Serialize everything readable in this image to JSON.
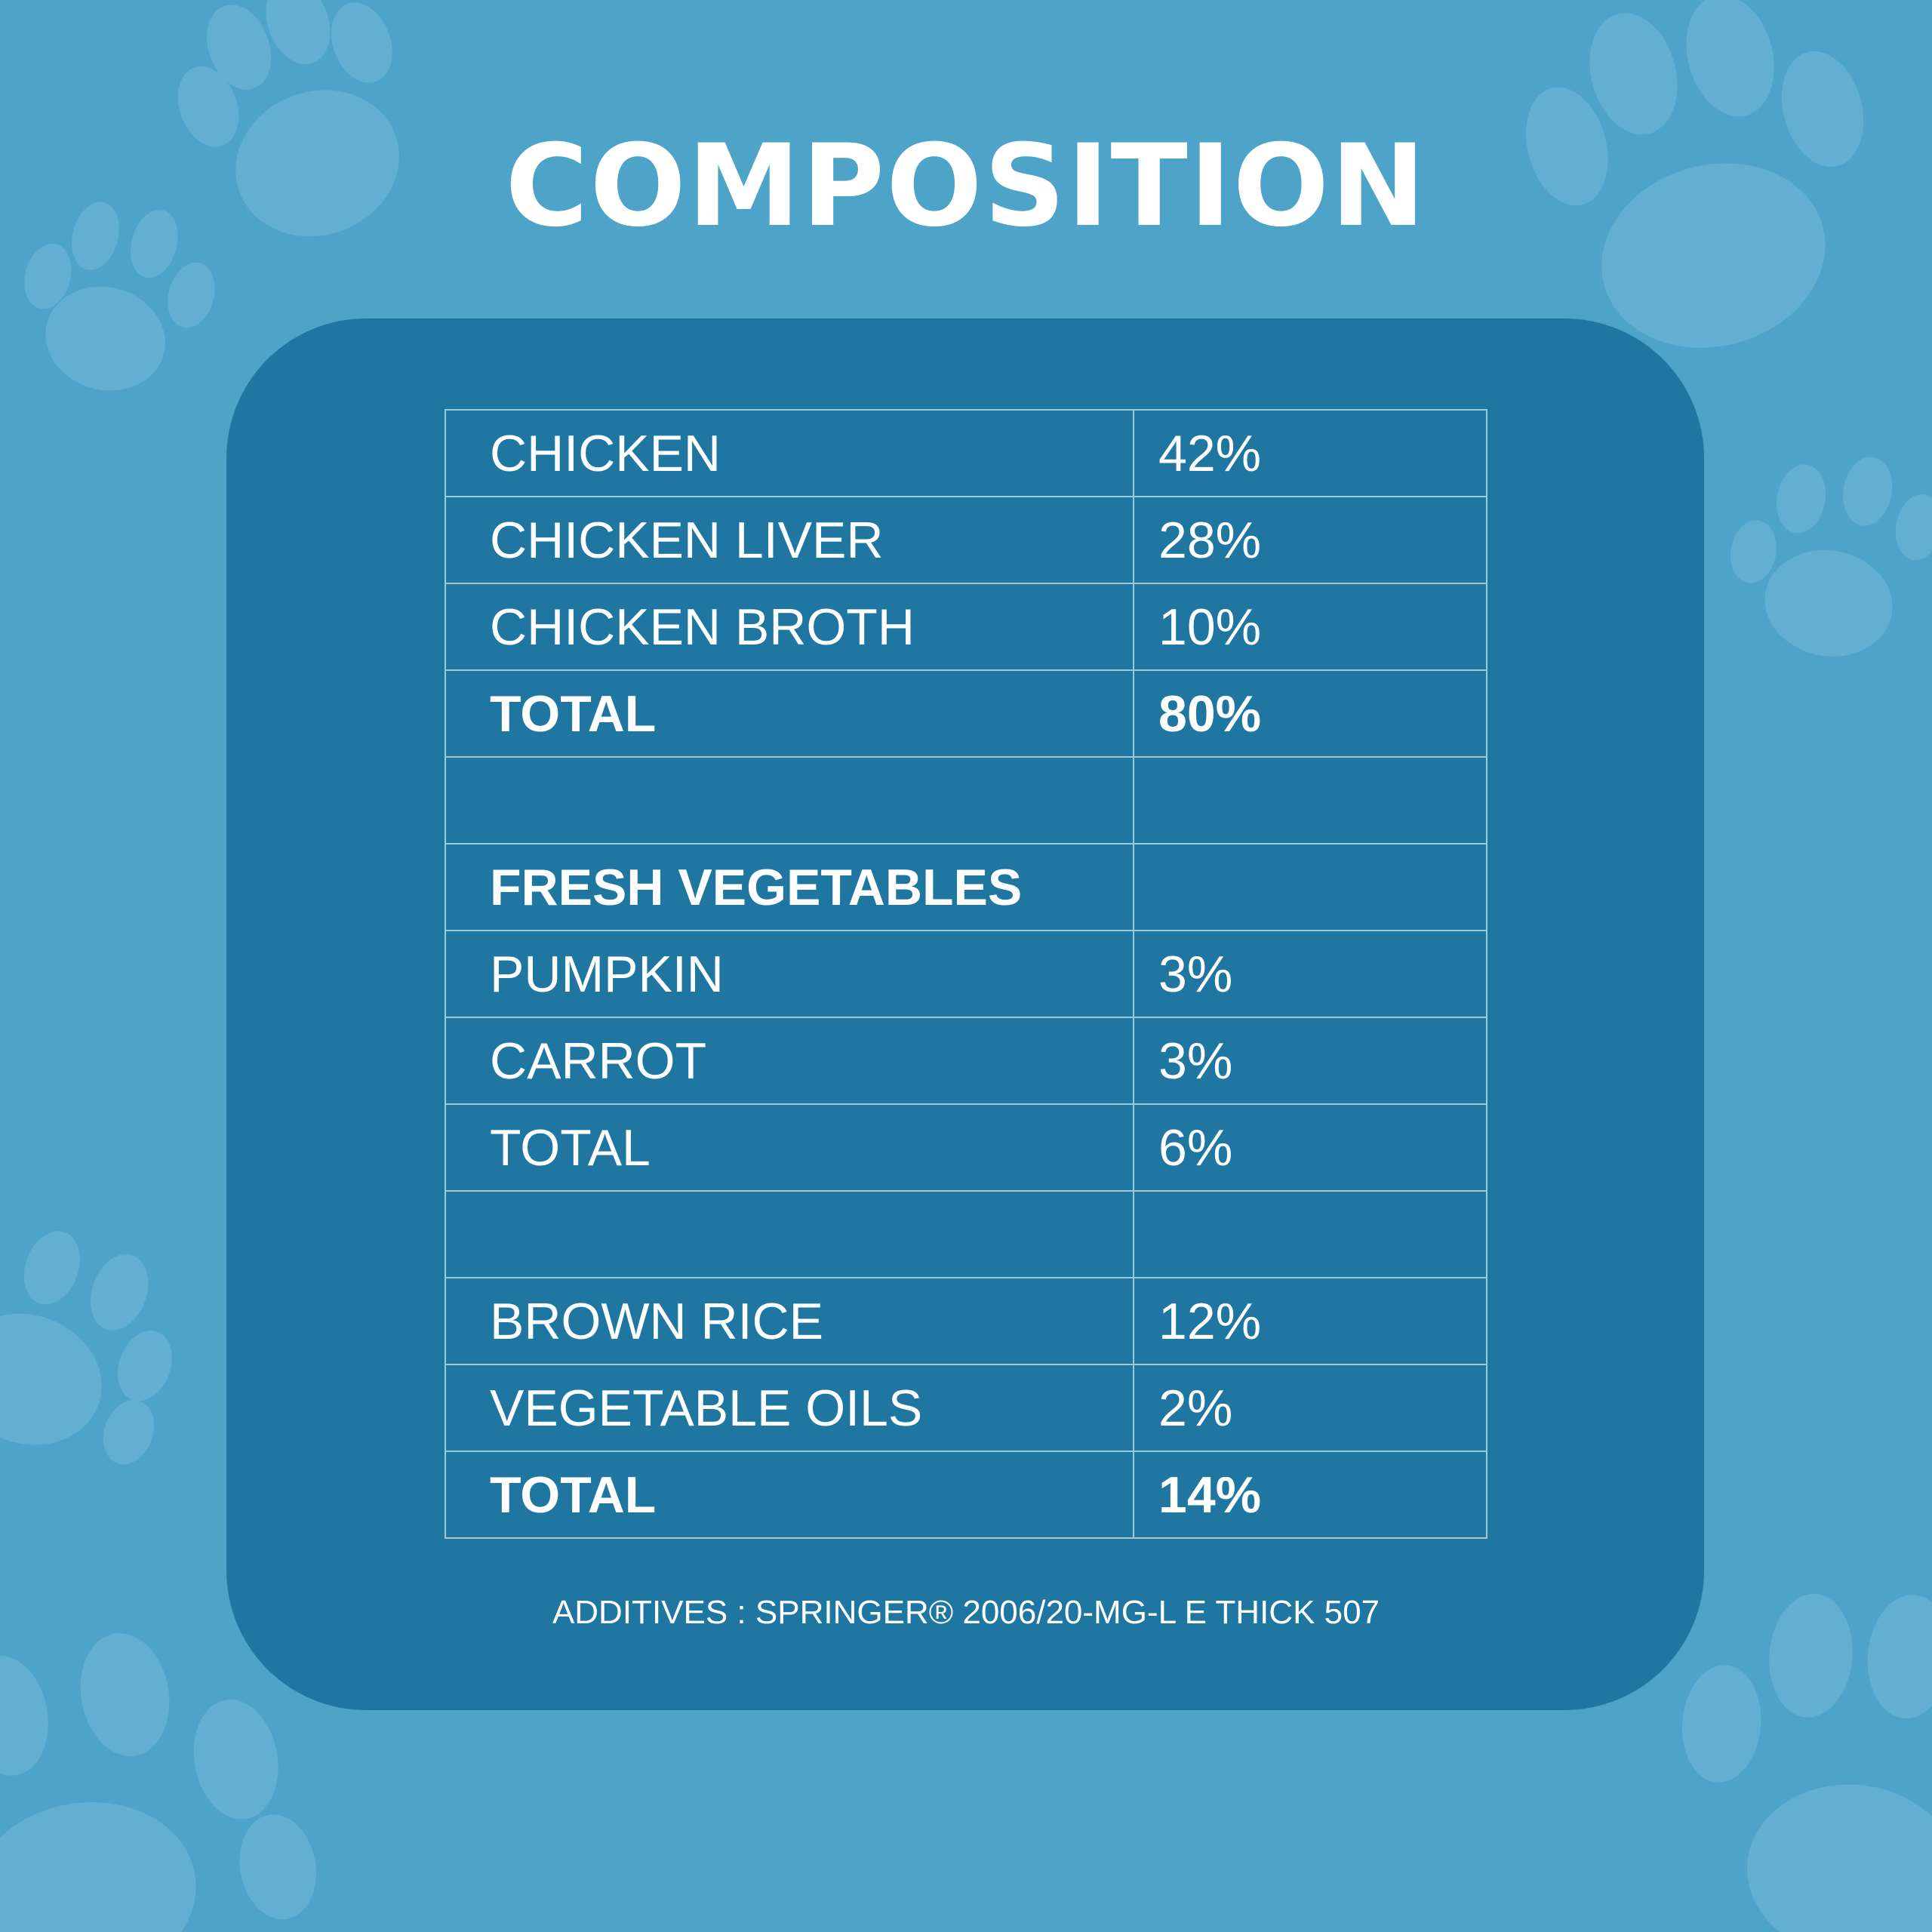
{
  "title": "COMPOSITION",
  "rows": [
    {
      "name": "CHICKEN",
      "value": "42%"
    },
    {
      "name": "CHICKEN LIVER",
      "value": "28%"
    },
    {
      "name": "CHICKEN BROTH",
      "value": "10%"
    },
    {
      "name": "TOTAL",
      "value": "80%"
    },
    {
      "name": "",
      "value": ""
    },
    {
      "name": "FRESH VEGETABLES",
      "value": ""
    },
    {
      "name": "PUMPKIN",
      "value": "3%"
    },
    {
      "name": "CARROT",
      "value": "3%"
    },
    {
      "name": "TOTAL",
      "value": "6%"
    },
    {
      "name": "",
      "value": ""
    },
    {
      "name": "BROWN RICE",
      "value": "12%"
    },
    {
      "name": "VEGETABLE OILS",
      "value": "2%"
    },
    {
      "name": "TOTAL",
      "value": "14%"
    }
  ],
  "additives": "ADDITIVES : SPRINGER® 2006/20-MG-L E THICK 507",
  "colors": {
    "background": "#4ea3c8",
    "panel": "#1f77a1",
    "paw": "#6ab3d4",
    "text": "#ffffff",
    "grid": "#9cc8dc"
  },
  "decoration_icons": [
    "paw-print-icon"
  ]
}
